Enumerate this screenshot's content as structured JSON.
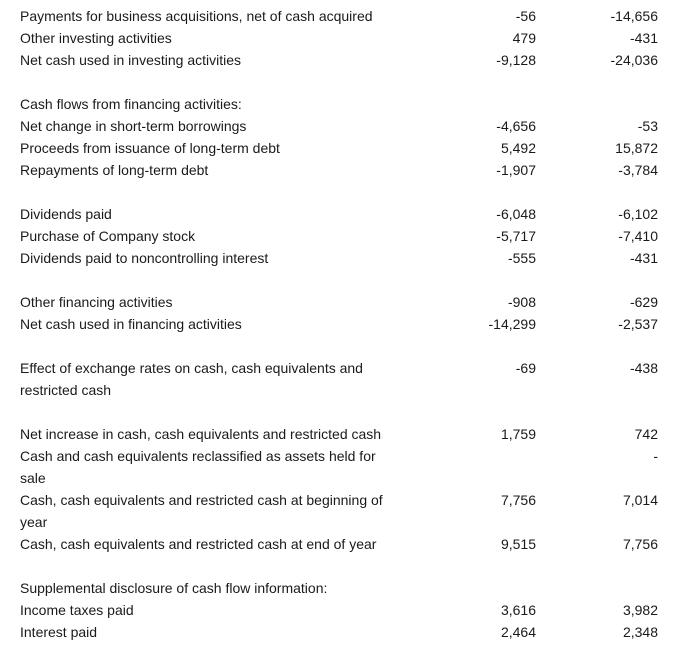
{
  "rows": [
    {
      "label": [
        "Payments for business acquisitions, net of cash acquired"
      ],
      "v1": "-56",
      "v2": "-14,656"
    },
    {
      "label": [
        "Other investing activities"
      ],
      "v1": "479",
      "v2": "-431"
    },
    {
      "label": [
        "Net cash used in investing activities"
      ],
      "v1": "-9,128",
      "v2": "-24,036"
    },
    {
      "blank": true
    },
    {
      "label": [
        "Cash flows from financing activities:"
      ],
      "v1": "",
      "v2": ""
    },
    {
      "label": [
        "Net change in short-term borrowings"
      ],
      "v1": "-4,656",
      "v2": "-53"
    },
    {
      "label": [
        "Proceeds from issuance of long-term debt"
      ],
      "v1": "5,492",
      "v2": "15,872"
    },
    {
      "label": [
        "Repayments of long-term debt"
      ],
      "v1": "-1,907",
      "v2": "-3,784"
    },
    {
      "blank": true
    },
    {
      "label": [
        "Dividends paid"
      ],
      "v1": "-6,048",
      "v2": "-6,102"
    },
    {
      "label": [
        "Purchase of Company stock"
      ],
      "v1": "-5,717",
      "v2": "-7,410"
    },
    {
      "label": [
        "Dividends paid to noncontrolling interest"
      ],
      "v1": "-555",
      "v2": "-431"
    },
    {
      "blank": true
    },
    {
      "label": [
        "Other financing activities"
      ],
      "v1": "-908",
      "v2": "-629"
    },
    {
      "label": [
        "Net cash used in financing activities"
      ],
      "v1": "-14,299",
      "v2": "-2,537"
    },
    {
      "blank": true
    },
    {
      "label": [
        "Effect of exchange rates on cash, cash equivalents and",
        "restricted cash"
      ],
      "v1": "-69",
      "v2": "-438"
    },
    {
      "blank": true
    },
    {
      "label": [
        "Net increase in cash, cash equivalents and restricted cash"
      ],
      "v1": "1,759",
      "v2": "742"
    },
    {
      "label": [
        "Cash and cash equivalents reclassified as assets held for",
        "sale"
      ],
      "v1": "",
      "v2": "-"
    },
    {
      "label": [
        "Cash, cash equivalents and restricted cash at beginning of",
        "year"
      ],
      "v1": "7,756",
      "v2": "7,014"
    },
    {
      "label": [
        "Cash, cash equivalents and restricted cash at end of year"
      ],
      "v1": "9,515",
      "v2": "7,756"
    },
    {
      "blank": true
    },
    {
      "label": [
        "Supplemental disclosure of cash flow information:"
      ],
      "v1": "",
      "v2": ""
    },
    {
      "label": [
        "Income taxes paid"
      ],
      "v1": "3,616",
      "v2": "3,982"
    },
    {
      "label": [
        "Interest paid"
      ],
      "v1": "2,464",
      "v2": "2,348"
    }
  ]
}
